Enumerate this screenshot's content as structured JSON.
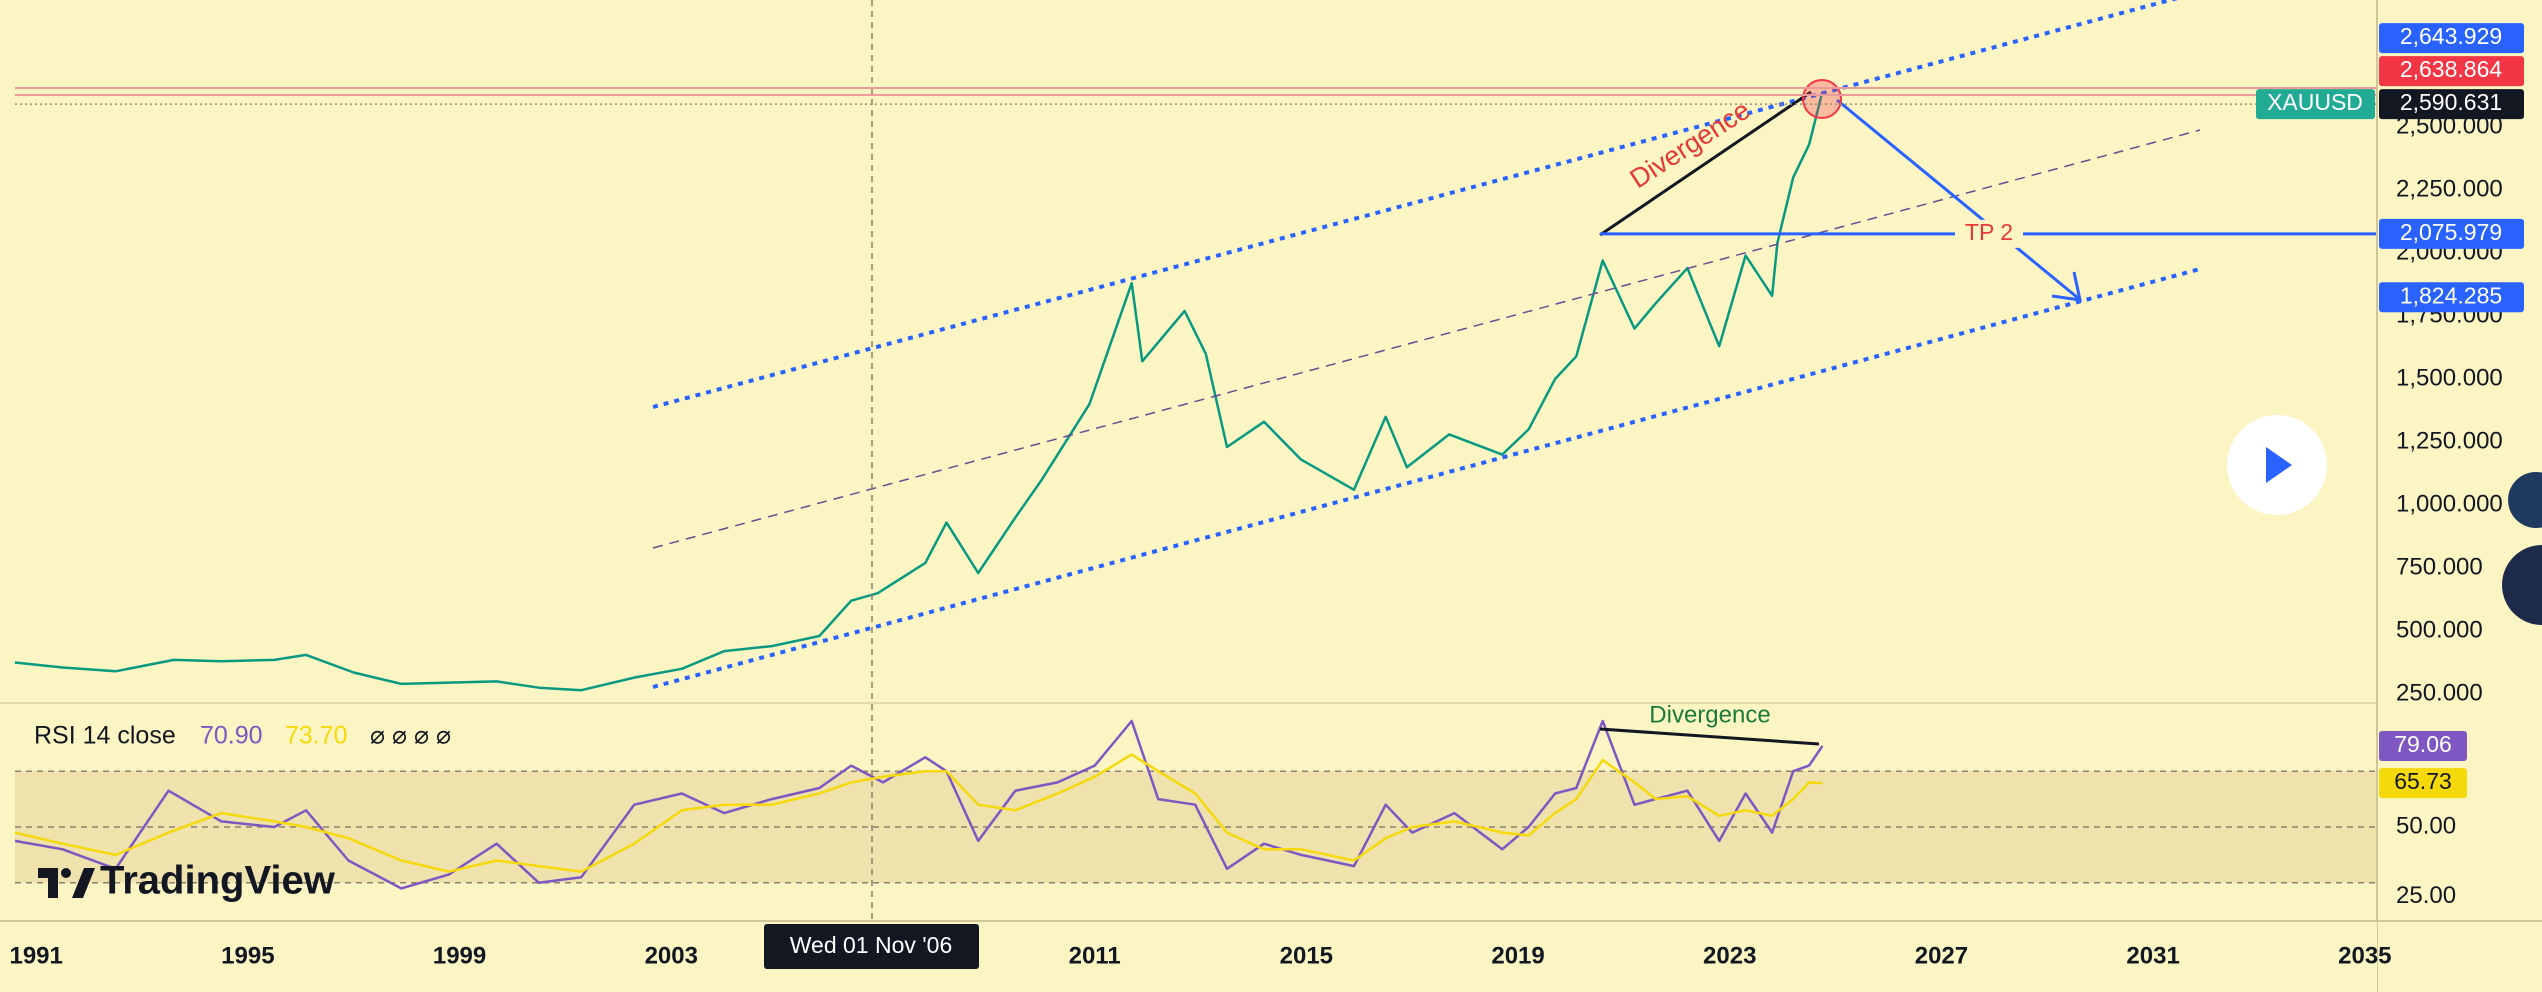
{
  "branding": "TradingView",
  "chart_data": [
    {
      "type": "line",
      "x": [
        1990.6,
        1991.5,
        1992.5,
        1993.6,
        1994.5,
        1995.5,
        1996.1,
        1997.0,
        1997.9,
        1998.8,
        1999.7,
        2000.5,
        2001.3,
        2002.3,
        2003.2,
        2004.0,
        2004.9,
        2005.8,
        2006.4,
        2006.9,
        2007.8,
        2008.2,
        2008.8,
        2009.5,
        2010.0,
        2010.9,
        2011.7,
        2011.9,
        2012.7,
        2013.1,
        2013.5,
        2014.2,
        2014.9,
        2015.9,
        2016.5,
        2016.9,
        2017.7,
        2018.7,
        2019.2,
        2019.7,
        2020.1,
        2020.6,
        2021.2,
        2021.6,
        2022.2,
        2022.8,
        2023.3,
        2023.8,
        2023.9,
        2024.2,
        2024.5,
        2024.75
      ],
      "series": [
        {
          "name": "XAUUSD",
          "color": "#089981",
          "values": [
            375,
            355,
            340,
            385,
            380,
            385,
            405,
            335,
            290,
            295,
            300,
            275,
            265,
            315,
            350,
            420,
            440,
            480,
            620,
            650,
            770,
            930,
            730,
            950,
            1100,
            1400,
            1880,
            1570,
            1770,
            1600,
            1230,
            1330,
            1180,
            1060,
            1350,
            1150,
            1280,
            1200,
            1300,
            1500,
            1590,
            1970,
            1700,
            1800,
            1940,
            1630,
            1990,
            1830,
            2040,
            2300,
            2430,
            2640
          ]
        }
      ],
      "xlim": [
        1990.6,
        2035.23
      ],
      "xticks": [
        1991,
        1995,
        1999,
        2003,
        2011,
        2015,
        2019,
        2023,
        2027,
        2031,
        2035
      ],
      "ylim": [
        226,
        3004
      ],
      "yticks": [
        {
          "value": 250,
          "label": "250.000"
        },
        {
          "value": 500,
          "label": "500.000"
        },
        {
          "value": 750,
          "label": "750.000"
        },
        {
          "value": 1000,
          "label": "1,000.000"
        },
        {
          "value": 1250,
          "label": "1,250.000"
        },
        {
          "value": 1500,
          "label": "1,500.000"
        },
        {
          "value": 1750,
          "label": "1,750.000"
        },
        {
          "value": 2000,
          "label": "2,000.000"
        },
        {
          "value": 2250,
          "label": "2,250.000"
        },
        {
          "value": 2500,
          "label": "2,500.000"
        }
      ],
      "price_tags": [
        {
          "value": 2643.929,
          "label": "2,643.929",
          "color": "#2962ff",
          "line": "none"
        },
        {
          "value": 2638.864,
          "label": "2,638.864",
          "color": "#f23645",
          "line": "double"
        },
        {
          "value": 2590.631,
          "label": "2,590.631",
          "color": "#131722",
          "line": "dotted"
        },
        {
          "value": 2075.979,
          "label": "2,075.979",
          "color": "#2962ff",
          "line": "tp"
        },
        {
          "value": 1824.285,
          "label": "1,824.285",
          "color": "#2962ff",
          "line": "none"
        }
      ],
      "annotations": [
        "Divergence",
        "TP 2"
      ],
      "crosshair_label": "Wed 01 Nov '06"
    },
    {
      "type": "line",
      "title": "RSI 14 close",
      "legend_values": [
        "70.90",
        "73.70"
      ],
      "toggles": "⌀ ⌀ ⌀ ⌀",
      "x": [
        1990.6,
        1991.5,
        1992.5,
        1993.5,
        1994.5,
        1995.5,
        1996.1,
        1996.9,
        1997.9,
        1998.8,
        1999.7,
        2000.5,
        2001.3,
        2002.3,
        2003.2,
        2004.0,
        2004.9,
        2005.8,
        2006.4,
        2007.0,
        2007.8,
        2008.2,
        2008.8,
        2009.5,
        2010.3,
        2011.0,
        2011.7,
        2012.2,
        2012.9,
        2013.5,
        2014.2,
        2014.9,
        2015.9,
        2016.5,
        2017.0,
        2017.8,
        2018.7,
        2019.2,
        2019.7,
        2020.1,
        2020.6,
        2021.2,
        2021.6,
        2022.2,
        2022.8,
        2023.3,
        2023.8,
        2024.2,
        2024.5,
        2024.75
      ],
      "series": [
        {
          "color": "#7e57c2",
          "values": [
            45,
            42,
            35,
            63,
            52,
            50,
            56,
            38,
            28,
            33,
            44,
            30,
            32,
            58,
            62,
            55,
            60,
            64,
            72,
            66,
            75,
            70,
            45,
            63,
            66,
            72,
            88,
            60,
            58,
            35,
            44,
            40,
            36,
            58,
            48,
            55,
            42,
            50,
            62,
            64,
            88,
            58,
            60,
            63,
            45,
            62,
            48,
            70,
            72,
            79.06
          ]
        },
        {
          "color": "#f5d90a",
          "values": [
            48,
            44,
            40,
            48,
            55,
            52,
            50,
            46,
            38,
            34,
            38,
            36,
            34,
            44,
            56,
            58,
            58,
            62,
            66,
            68,
            70,
            70,
            58,
            56,
            62,
            68,
            76,
            70,
            62,
            48,
            42,
            42,
            38,
            46,
            50,
            52,
            48,
            47,
            55,
            60,
            74,
            66,
            60,
            61,
            54,
            56,
            54,
            60,
            66,
            65.73
          ]
        }
      ],
      "ylim": [
        16.3,
        94.1
      ],
      "yticks": [
        {
          "value": 25,
          "label": "25.00"
        },
        {
          "value": 50,
          "label": "50.00"
        }
      ],
      "band": [
        30,
        70
      ],
      "levels": [
        30,
        50,
        70
      ],
      "annotations": [
        "Divergence"
      ]
    }
  ]
}
